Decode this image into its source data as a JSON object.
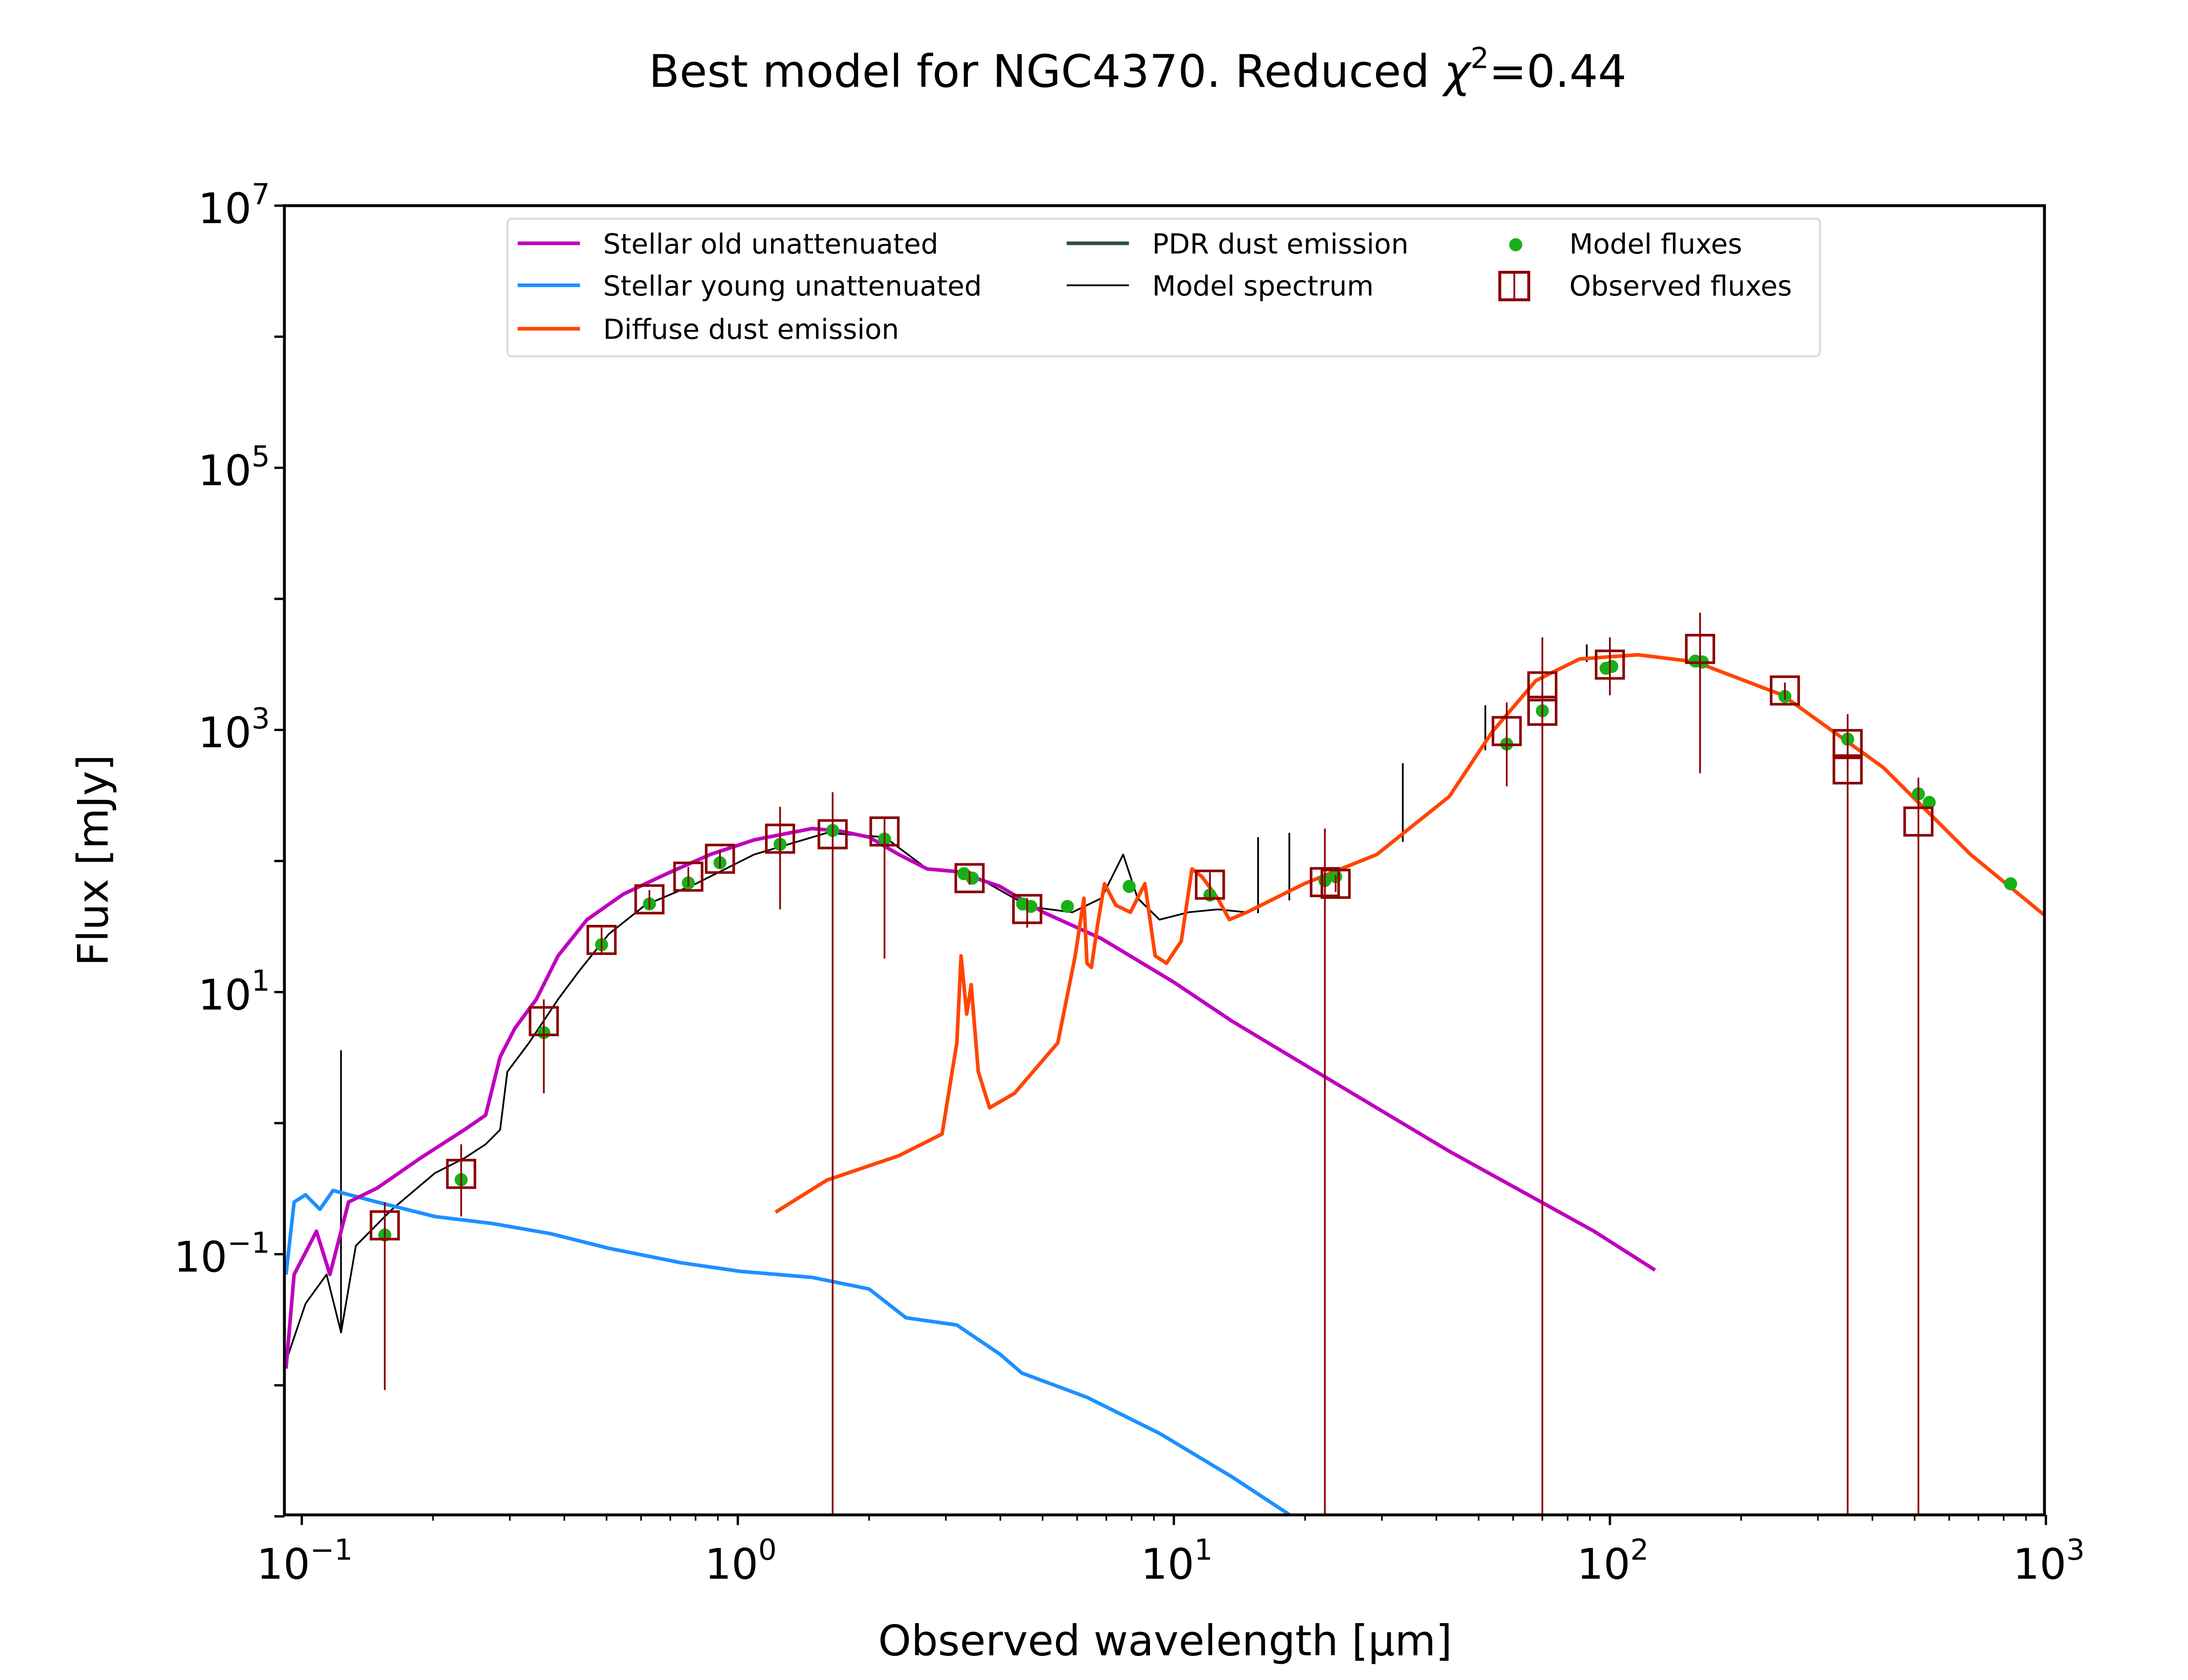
{
  "chart_data": {
    "type": "line",
    "title": {
      "prefix": "Best model for NGC4370. Reduced ",
      "chi": "χ",
      "sup": "2",
      "suffix": "=0.44"
    },
    "xlabel": "Observed wavelength [μm]",
    "ylabel": "Flux [mJy]",
    "xscale": "log",
    "yscale": "log",
    "xlim": [
      0.091,
      1000
    ],
    "ylim": [
      0.001,
      10000000
    ],
    "xticks": [
      {
        "value": 0.1,
        "base": "10",
        "exp": "−1"
      },
      {
        "value": 1,
        "base": "10",
        "exp": "0"
      },
      {
        "value": 10,
        "base": "10",
        "exp": "1"
      },
      {
        "value": 100,
        "base": "10",
        "exp": "2"
      },
      {
        "value": 1000,
        "base": "10",
        "exp": "3"
      }
    ],
    "yticks": [
      {
        "value": 0.1,
        "base": "10",
        "exp": "−1"
      },
      {
        "value": 10,
        "base": "10",
        "exp": "1"
      },
      {
        "value": 1000,
        "base": "10",
        "exp": "3"
      },
      {
        "value": 100000,
        "base": "10",
        "exp": "5"
      },
      {
        "value": 10000000,
        "base": "10",
        "exp": "7"
      }
    ],
    "grid": false,
    "legend_position": "top-center",
    "series": [
      {
        "name": "Stellar old unattenuated",
        "color": "#bf00bf",
        "points": [
          [
            0.092,
            0.0134
          ],
          [
            0.096,
            0.07
          ],
          [
            0.102,
            0.103
          ],
          [
            0.108,
            0.15
          ],
          [
            0.116,
            0.07
          ],
          [
            0.128,
            0.25
          ],
          [
            0.149,
            0.32
          ],
          [
            0.187,
            0.54
          ],
          [
            0.236,
            0.89
          ],
          [
            0.264,
            1.15
          ],
          [
            0.285,
            3.2
          ],
          [
            0.308,
            5.3
          ],
          [
            0.345,
            8.8
          ],
          [
            0.387,
            18.9
          ],
          [
            0.451,
            35.7
          ],
          [
            0.547,
            56
          ],
          [
            0.687,
            80
          ],
          [
            0.865,
            112
          ],
          [
            1.09,
            145
          ],
          [
            1.48,
            177
          ],
          [
            1.72,
            169
          ],
          [
            2.0,
            152
          ],
          [
            2.34,
            112
          ],
          [
            2.72,
            87
          ],
          [
            3.18,
            83
          ],
          [
            3.99,
            64
          ],
          [
            5.02,
            40.6
          ],
          [
            6.82,
            25.6
          ],
          [
            10,
            11.9
          ],
          [
            13.6,
            6.0
          ],
          [
            19.9,
            2.8
          ],
          [
            42.8,
            0.61
          ],
          [
            91.9,
            0.15
          ],
          [
            127,
            0.0755
          ]
        ]
      },
      {
        "name": "Stellar young unattenuated",
        "color": "#1e90ff",
        "points": [
          [
            0.092,
            0.07
          ],
          [
            0.096,
            0.25
          ],
          [
            0.102,
            0.284
          ],
          [
            0.11,
            0.22
          ],
          [
            0.118,
            0.306
          ],
          [
            0.149,
            0.25
          ],
          [
            0.202,
            0.194
          ],
          [
            0.275,
            0.171
          ],
          [
            0.373,
            0.143
          ],
          [
            0.506,
            0.111
          ],
          [
            0.741,
            0.086
          ],
          [
            1.01,
            0.074
          ],
          [
            1.48,
            0.0666
          ],
          [
            2.0,
            0.0543
          ],
          [
            2.43,
            0.0327
          ],
          [
            3.18,
            0.0288
          ],
          [
            3.99,
            0.0173
          ],
          [
            4.48,
            0.0124
          ],
          [
            6.32,
            0.0081
          ],
          [
            9.27,
            0.0043
          ],
          [
            13.6,
            0.002
          ],
          [
            18.4,
            0.00103
          ]
        ]
      },
      {
        "name": "Diffuse dust emission",
        "color": "#ff4500",
        "points": [
          [
            1.22,
            0.209
          ],
          [
            1.6,
            0.367
          ],
          [
            2.34,
            0.564
          ],
          [
            2.94,
            0.826
          ],
          [
            3.18,
            4.1
          ],
          [
            3.25,
            18.9
          ],
          [
            3.35,
            6.8
          ],
          [
            3.43,
            11.4
          ],
          [
            3.56,
            2.47
          ],
          [
            3.78,
            1.31
          ],
          [
            4.31,
            1.69
          ],
          [
            5.42,
            4.1
          ],
          [
            5.94,
            18.9
          ],
          [
            6.22,
            52
          ],
          [
            6.32,
            16.6
          ],
          [
            6.47,
            15.4
          ],
          [
            6.67,
            31.4
          ],
          [
            6.93,
            67
          ],
          [
            7.36,
            46
          ],
          [
            7.95,
            40.6
          ],
          [
            8.58,
            67
          ],
          [
            9.06,
            18.9
          ],
          [
            9.62,
            16.6
          ],
          [
            10.4,
            24.4
          ],
          [
            11.0,
            87
          ],
          [
            11.6,
            76
          ],
          [
            12.6,
            52
          ],
          [
            13.4,
            35.7
          ],
          [
            14.7,
            40.6
          ],
          [
            19.9,
            67
          ],
          [
            29.2,
            112
          ],
          [
            42.8,
            310
          ],
          [
            53.8,
            975
          ],
          [
            67.7,
            2380
          ],
          [
            85.2,
            3480
          ],
          [
            116,
            3750
          ],
          [
            157,
            3310
          ],
          [
            249,
            1840
          ],
          [
            424,
            516
          ],
          [
            672,
            112
          ],
          [
            993,
            38.5
          ]
        ]
      },
      {
        "name": "PDR dust emission",
        "color": "#2f4f4f",
        "points": []
      },
      {
        "name": "Model spectrum",
        "color": "#000000",
        "points": [
          [
            0.092,
            0.0152
          ],
          [
            0.102,
            0.042
          ],
          [
            0.114,
            0.07
          ],
          [
            0.123,
            0.0253
          ],
          [
            0.133,
            0.116
          ],
          [
            0.161,
            0.22
          ],
          [
            0.202,
            0.416
          ],
          [
            0.236,
            0.54
          ],
          [
            0.264,
            0.69
          ],
          [
            0.285,
            0.89
          ],
          [
            0.296,
            2.47
          ],
          [
            0.332,
            4.1
          ],
          [
            0.387,
            8.8
          ],
          [
            0.434,
            14.7
          ],
          [
            0.506,
            27.7
          ],
          [
            0.613,
            46
          ],
          [
            0.801,
            67
          ],
          [
            1.09,
            112
          ],
          [
            1.6,
            164
          ],
          [
            2.17,
            152
          ],
          [
            2.72,
            87
          ],
          [
            3.43,
            80
          ],
          [
            4.65,
            44.9
          ],
          [
            5.85,
            40.6
          ],
          [
            6.82,
            52
          ],
          [
            7.65,
            112
          ],
          [
            8.26,
            52
          ],
          [
            9.27,
            35.7
          ],
          [
            10.8,
            40.6
          ],
          [
            12.6,
            42.7
          ],
          [
            14.7,
            40.6
          ],
          [
            19.9,
            67
          ],
          [
            29.2,
            112
          ],
          [
            42.8,
            310
          ],
          [
            53.8,
            975
          ],
          [
            67.7,
            2380
          ],
          [
            85.2,
            3480
          ],
          [
            116,
            3750
          ],
          [
            157,
            3310
          ],
          [
            249,
            1840
          ],
          [
            424,
            516
          ],
          [
            672,
            112
          ],
          [
            993,
            38.5
          ]
        ],
        "spikes": [
          [
            0.123,
            0.025,
            3.6
          ],
          [
            15.6,
            40,
            152
          ],
          [
            18.4,
            50,
            164
          ],
          [
            33.5,
            140,
            557
          ],
          [
            51.8,
            700,
            1540
          ],
          [
            88.5,
            3300,
            4490
          ]
        ]
      },
      {
        "name": "Model fluxes",
        "color": "#18b018",
        "points": [
          [
            0.155,
            0.14
          ],
          [
            0.232,
            0.37
          ],
          [
            0.359,
            4.9
          ],
          [
            0.487,
            23
          ],
          [
            0.627,
            47
          ],
          [
            0.77,
            68
          ],
          [
            0.91,
            97
          ],
          [
            1.25,
            134
          ],
          [
            1.65,
            171
          ],
          [
            2.17,
            147
          ],
          [
            3.3,
            80
          ],
          [
            3.45,
            74
          ],
          [
            4.5,
            47
          ],
          [
            4.7,
            45
          ],
          [
            5.7,
            45
          ],
          [
            7.9,
            64
          ],
          [
            12.1,
            55
          ],
          [
            22.2,
            71
          ],
          [
            23.5,
            76
          ],
          [
            58,
            780
          ],
          [
            70,
            1400
          ],
          [
            98,
            2950
          ],
          [
            101,
            3050
          ],
          [
            157,
            3350
          ],
          [
            163,
            3300
          ],
          [
            252,
            1800
          ],
          [
            351,
            850
          ],
          [
            510,
            325
          ],
          [
            540,
            280
          ],
          [
            830,
            67
          ]
        ]
      },
      {
        "name": "Observed fluxes",
        "color": "#8b0000",
        "points": [
          {
            "x": 0.155,
            "y": 0.166,
            "lo": 0.0092,
            "hi": 0.25
          },
          {
            "x": 0.232,
            "y": 0.41,
            "lo": 0.194,
            "hi": 0.69
          },
          {
            "x": 0.359,
            "y": 6.0,
            "lo": 1.69,
            "hi": 8.8
          },
          {
            "x": 0.487,
            "y": 25,
            "lo": 20,
            "hi": 31
          },
          {
            "x": 0.627,
            "y": 51,
            "lo": 43,
            "hi": 60
          },
          {
            "x": 0.77,
            "y": 76,
            "lo": 64,
            "hi": 90
          },
          {
            "x": 0.91,
            "y": 104,
            "lo": 88,
            "hi": 122
          },
          {
            "x": 1.25,
            "y": 148,
            "lo": 42.7,
            "hi": 259
          },
          {
            "x": 1.65,
            "y": 160,
            "lo": null,
            "hi": 335
          },
          {
            "x": 2.17,
            "y": 168,
            "lo": 18,
            "hi": 212
          },
          {
            "x": 3.4,
            "y": 74,
            "lo": 66,
            "hi": 84
          },
          {
            "x": 4.61,
            "y": 43,
            "lo": 31,
            "hi": 52
          },
          {
            "x": 12.1,
            "y": 66,
            "lo": 50,
            "hi": 82
          },
          {
            "x": 22.2,
            "y": 69,
            "lo": null,
            "hi": 177
          },
          {
            "x": 23.5,
            "y": 67,
            "lo": 58,
            "hi": 78
          },
          {
            "x": 58,
            "y": 980,
            "lo": 371,
            "hi": 1620
          },
          {
            "x": 70,
            "y": 2150,
            "lo": null,
            "hi": 5090
          },
          {
            "x": 70,
            "y": 1400,
            "lo": 900,
            "hi": 2000
          },
          {
            "x": 100,
            "y": 3150,
            "lo": 1840,
            "hi": 5090
          },
          {
            "x": 161,
            "y": 4150,
            "lo": 467,
            "hi": 7850
          },
          {
            "x": 252,
            "y": 2000,
            "lo": 1700,
            "hi": 2300
          },
          {
            "x": 351,
            "y": 780,
            "lo": 550,
            "hi": 1320
          },
          {
            "x": 351,
            "y": 500,
            "lo": null,
            "hi": 800
          },
          {
            "x": 510,
            "y": 200,
            "lo": null,
            "hi": 432
          }
        ]
      }
    ]
  }
}
